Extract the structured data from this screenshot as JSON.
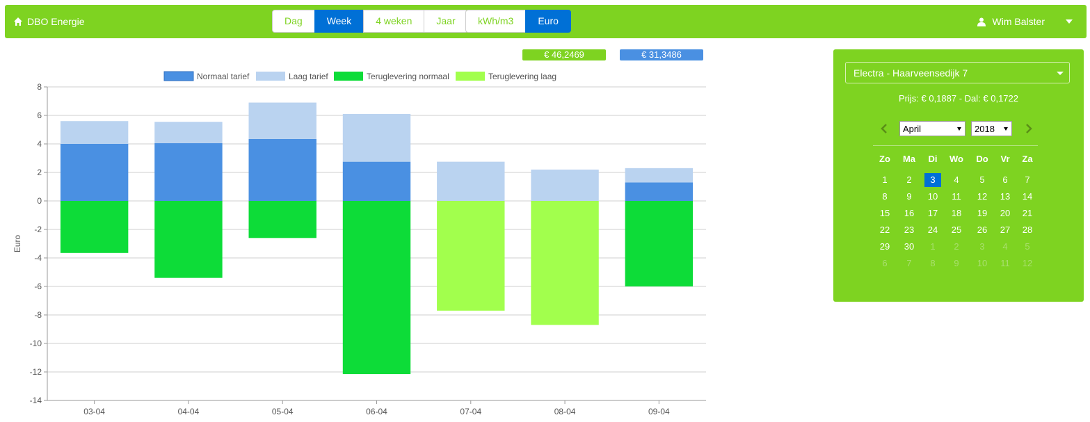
{
  "navbar": {
    "brand": "DBO Energie",
    "period_buttons": [
      {
        "label": "Dag",
        "active": false
      },
      {
        "label": "Week",
        "active": true
      },
      {
        "label": "4 weken",
        "active": false
      },
      {
        "label": "Jaar",
        "active": false
      }
    ],
    "unit_buttons": [
      {
        "label": "kWh/m3",
        "active": false
      },
      {
        "label": "Euro",
        "active": true
      }
    ],
    "user": "Wim Balster"
  },
  "totals": {
    "green": "€ 46,2469",
    "blue": "€ 31,3486"
  },
  "colors": {
    "green": "#7ed321",
    "active_blue": "#0070d6",
    "normaal": "#4a90e2",
    "laag": "#bad3f0",
    "terug_normaal": "#0ddc38",
    "terug_laag": "#a2ff4d"
  },
  "panel": {
    "connection": "Electra - Haarveensedijk 7",
    "price": "Prijs: € 0,1887 - Dal: € 0,1722",
    "month": "April",
    "year": "2018",
    "weekdays": [
      "Zo",
      "Ma",
      "Di",
      "Wo",
      "Do",
      "Vr",
      "Za"
    ],
    "weeks": [
      [
        "1",
        "2",
        "3",
        "4",
        "5",
        "6",
        "7"
      ],
      [
        "8",
        "9",
        "10",
        "11",
        "12",
        "13",
        "14"
      ],
      [
        "15",
        "16",
        "17",
        "18",
        "19",
        "20",
        "21"
      ],
      [
        "22",
        "23",
        "24",
        "25",
        "26",
        "27",
        "28"
      ],
      [
        "29",
        "30",
        "1",
        "2",
        "3",
        "4",
        "5"
      ],
      [
        "6",
        "7",
        "8",
        "9",
        "10",
        "11",
        "12"
      ]
    ],
    "selected_day": "3"
  },
  "chart_data": {
    "type": "bar",
    "stacked": true,
    "categories": [
      "03-04",
      "04-04",
      "05-04",
      "06-04",
      "07-04",
      "08-04",
      "09-04"
    ],
    "ylabel": "Euro",
    "ylim": [
      -14,
      8
    ],
    "yticks": [
      8,
      6,
      4,
      2,
      0,
      -2,
      -4,
      -6,
      -8,
      -10,
      -12,
      -14
    ],
    "grid": true,
    "legend_position": "top",
    "series": [
      {
        "name": "Normaal tarief",
        "color": "#4a90e2",
        "values": [
          4.0,
          4.05,
          4.35,
          2.75,
          0,
          0,
          1.3
        ]
      },
      {
        "name": "Laag tarief",
        "color": "#bad3f0",
        "values": [
          1.6,
          1.5,
          2.55,
          3.35,
          2.75,
          2.2,
          1.0
        ]
      },
      {
        "name": "Teruglevering normaal",
        "color": "#0ddc38",
        "values": [
          -3.65,
          -5.4,
          -2.6,
          -12.15,
          0,
          0,
          -6.0
        ]
      },
      {
        "name": "Teruglevering laag",
        "color": "#a2ff4d",
        "values": [
          0,
          0,
          0,
          0,
          -7.7,
          -8.7,
          0
        ]
      }
    ]
  }
}
